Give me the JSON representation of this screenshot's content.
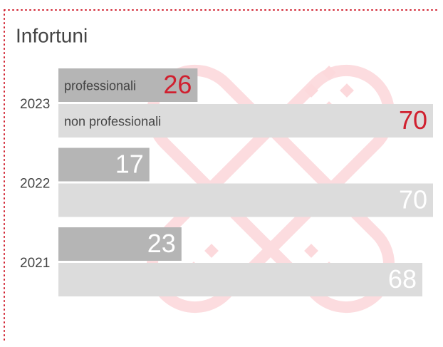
{
  "chart_data": {
    "type": "bar",
    "orientation": "horizontal",
    "title": "Infortuni",
    "categories": [
      "2023",
      "2022",
      "2021"
    ],
    "series": [
      {
        "name": "professionali",
        "color": "#b5b5b5",
        "values": [
          26,
          17,
          23
        ],
        "value_label_colors": [
          "#d0202f",
          "#ffffff",
          "#ffffff"
        ]
      },
      {
        "name": "non professionali",
        "color": "#dcdcdc",
        "values": [
          70,
          70,
          68
        ],
        "value_label_colors": [
          "#d0202f",
          "#ffffff",
          "#ffffff"
        ]
      }
    ]
  }
}
